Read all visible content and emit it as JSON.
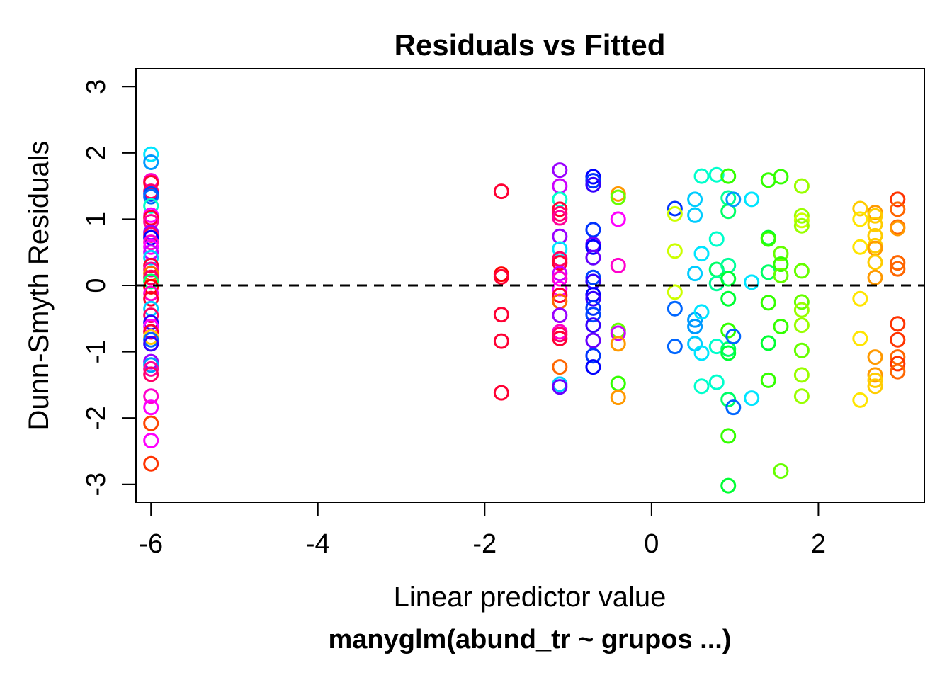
{
  "chart_data": {
    "type": "scatter",
    "title": "Residuals vs Fitted",
    "xlabel": "Linear predictor value",
    "subtitle": "manyglm(abund_tr ~ grupos ...)",
    "ylabel": "Dunn-Smyth Residuals",
    "xlim": [
      -6.18,
      3.27
    ],
    "ylim": [
      -3.27,
      3.27
    ],
    "x_ticks": [
      -6,
      -4,
      -2,
      0,
      2
    ],
    "x_tick_labels": [
      "-6",
      "-4",
      "-2",
      "0",
      "2"
    ],
    "y_ticks": [
      -3,
      -2,
      -1,
      0,
      1,
      2,
      3
    ],
    "y_tick_labels": [
      "-3",
      "-2",
      "-1",
      "0",
      "1",
      "2",
      "3"
    ],
    "reference_line": {
      "y": 0,
      "style": "dashed",
      "color": "#000000"
    },
    "marker": "open-circle",
    "points": [
      {
        "x": -6.0,
        "y": 1.98,
        "color": "#00e5ff"
      },
      {
        "x": -6.0,
        "y": 1.86,
        "color": "#0099ff"
      },
      {
        "x": -6.0,
        "y": 1.58,
        "color": "#ff00cc"
      },
      {
        "x": -6.0,
        "y": 1.55,
        "color": "#ff0033"
      },
      {
        "x": -6.0,
        "y": 1.42,
        "color": "#ff0066"
      },
      {
        "x": -6.0,
        "y": 1.38,
        "color": "#0044ff"
      },
      {
        "x": -6.0,
        "y": 1.34,
        "color": "#0066ff"
      },
      {
        "x": -6.0,
        "y": 1.2,
        "color": "#00ffcc"
      },
      {
        "x": -6.0,
        "y": 1.06,
        "color": "#ff00ff"
      },
      {
        "x": -6.0,
        "y": 1.02,
        "color": "#ff0033"
      },
      {
        "x": -6.0,
        "y": 0.96,
        "color": "#ff0099"
      },
      {
        "x": -6.0,
        "y": 0.8,
        "color": "#9900ff"
      },
      {
        "x": -6.0,
        "y": 0.76,
        "color": "#ff0066"
      },
      {
        "x": -6.0,
        "y": 0.72,
        "color": "#0000ff"
      },
      {
        "x": -6.0,
        "y": 0.65,
        "color": "#ff00cc"
      },
      {
        "x": -6.0,
        "y": 0.58,
        "color": "#ff00ff"
      },
      {
        "x": -6.0,
        "y": 0.5,
        "color": "#cc00ff"
      },
      {
        "x": -6.0,
        "y": 0.42,
        "color": "#00ccff"
      },
      {
        "x": -6.0,
        "y": 0.3,
        "color": "#ff0033"
      },
      {
        "x": -6.0,
        "y": 0.24,
        "color": "#ff0099"
      },
      {
        "x": -6.0,
        "y": 0.18,
        "color": "#ff6600"
      },
      {
        "x": -6.0,
        "y": 0.12,
        "color": "#ff0066"
      },
      {
        "x": -6.0,
        "y": 0.06,
        "color": "#00ff66"
      },
      {
        "x": -6.0,
        "y": -0.02,
        "color": "#ff0000"
      },
      {
        "x": -6.0,
        "y": -0.12,
        "color": "#ff00cc"
      },
      {
        "x": -6.0,
        "y": -0.2,
        "color": "#ff0033"
      },
      {
        "x": -6.0,
        "y": -0.35,
        "color": "#00ccff"
      },
      {
        "x": -6.0,
        "y": -0.45,
        "color": "#ff0066"
      },
      {
        "x": -6.0,
        "y": -0.56,
        "color": "#3300ff"
      },
      {
        "x": -6.0,
        "y": -0.62,
        "color": "#ff00ff"
      },
      {
        "x": -6.0,
        "y": -0.7,
        "color": "#ff0033"
      },
      {
        "x": -6.0,
        "y": -0.78,
        "color": "#ffcc00"
      },
      {
        "x": -6.0,
        "y": -0.82,
        "color": "#0066ff"
      },
      {
        "x": -6.0,
        "y": -0.88,
        "color": "#3300ff"
      },
      {
        "x": -6.0,
        "y": -1.15,
        "color": "#9900ff"
      },
      {
        "x": -6.0,
        "y": -1.2,
        "color": "#0099ff"
      },
      {
        "x": -6.0,
        "y": -1.26,
        "color": "#ff0099"
      },
      {
        "x": -6.0,
        "y": -1.34,
        "color": "#ff0066"
      },
      {
        "x": -6.0,
        "y": -1.67,
        "color": "#ff00cc"
      },
      {
        "x": -6.0,
        "y": -1.84,
        "color": "#ff00ff"
      },
      {
        "x": -6.0,
        "y": -2.08,
        "color": "#ff4400"
      },
      {
        "x": -6.0,
        "y": -2.34,
        "color": "#ff00ff"
      },
      {
        "x": -6.0,
        "y": -2.69,
        "color": "#ff3300"
      },
      {
        "x": -1.8,
        "y": 1.42,
        "color": "#ff0033"
      },
      {
        "x": -1.8,
        "y": 0.17,
        "color": "#ff0000"
      },
      {
        "x": -1.8,
        "y": 0.13,
        "color": "#ff0033"
      },
      {
        "x": -1.8,
        "y": -0.44,
        "color": "#ff0033"
      },
      {
        "x": -1.8,
        "y": -0.84,
        "color": "#ff0033"
      },
      {
        "x": -1.8,
        "y": -1.62,
        "color": "#ff0033"
      },
      {
        "x": -1.1,
        "y": 1.74,
        "color": "#9900ff"
      },
      {
        "x": -1.1,
        "y": 1.5,
        "color": "#cc00ff"
      },
      {
        "x": -1.1,
        "y": 1.3,
        "color": "#00ffcc"
      },
      {
        "x": -1.1,
        "y": 1.15,
        "color": "#ff0033"
      },
      {
        "x": -1.1,
        "y": 1.08,
        "color": "#ff0066"
      },
      {
        "x": -1.1,
        "y": 1.02,
        "color": "#ff0099"
      },
      {
        "x": -1.1,
        "y": 0.74,
        "color": "#9900ff"
      },
      {
        "x": -1.1,
        "y": 0.55,
        "color": "#00e5ff"
      },
      {
        "x": -1.1,
        "y": 0.4,
        "color": "#ff0066"
      },
      {
        "x": -1.1,
        "y": 0.34,
        "color": "#ff0033"
      },
      {
        "x": -1.1,
        "y": 0.18,
        "color": "#cc00ff"
      },
      {
        "x": -1.1,
        "y": 0.1,
        "color": "#ff00cc"
      },
      {
        "x": -1.1,
        "y": -0.05,
        "color": "#ff00ff"
      },
      {
        "x": -1.1,
        "y": -0.15,
        "color": "#ff0033"
      },
      {
        "x": -1.1,
        "y": -0.24,
        "color": "#ff6600"
      },
      {
        "x": -1.1,
        "y": -0.45,
        "color": "#9900ff"
      },
      {
        "x": -1.1,
        "y": -0.7,
        "color": "#ff00cc"
      },
      {
        "x": -1.1,
        "y": -0.8,
        "color": "#ff0033"
      },
      {
        "x": -1.1,
        "y": -0.74,
        "color": "#ff0066"
      },
      {
        "x": -1.1,
        "y": -1.23,
        "color": "#ff6600"
      },
      {
        "x": -1.1,
        "y": -1.49,
        "color": "#00ccff"
      },
      {
        "x": -1.1,
        "y": -1.53,
        "color": "#6600ff"
      },
      {
        "x": -0.7,
        "y": 1.64,
        "color": "#0000ff"
      },
      {
        "x": -0.7,
        "y": 1.58,
        "color": "#0033ff"
      },
      {
        "x": -0.7,
        "y": 1.52,
        "color": "#3300ff"
      },
      {
        "x": -0.7,
        "y": 0.84,
        "color": "#0033ff"
      },
      {
        "x": -0.7,
        "y": 0.62,
        "color": "#6600ff"
      },
      {
        "x": -0.7,
        "y": 0.58,
        "color": "#0000ff"
      },
      {
        "x": -0.7,
        "y": 0.42,
        "color": "#6600ff"
      },
      {
        "x": -0.7,
        "y": 0.12,
        "color": "#0044ff"
      },
      {
        "x": -0.7,
        "y": 0.06,
        "color": "#3300ff"
      },
      {
        "x": -0.7,
        "y": -0.14,
        "color": "#0000ff"
      },
      {
        "x": -0.7,
        "y": -0.2,
        "color": "#3300ff"
      },
      {
        "x": -0.7,
        "y": -0.34,
        "color": "#0033ff"
      },
      {
        "x": -0.7,
        "y": -0.44,
        "color": "#0044ff"
      },
      {
        "x": -0.7,
        "y": -0.6,
        "color": "#3300ff"
      },
      {
        "x": -0.7,
        "y": -0.83,
        "color": "#6600ff"
      },
      {
        "x": -0.7,
        "y": -1.06,
        "color": "#0033ff"
      },
      {
        "x": -0.7,
        "y": -1.23,
        "color": "#0000ff"
      },
      {
        "x": -0.4,
        "y": 1.38,
        "color": "#ff9900"
      },
      {
        "x": -0.4,
        "y": 1.33,
        "color": "#66ff00"
      },
      {
        "x": -0.4,
        "y": 1.0,
        "color": "#ff00ff"
      },
      {
        "x": -0.4,
        "y": 0.3,
        "color": "#ff00cc"
      },
      {
        "x": -0.4,
        "y": -0.68,
        "color": "#66ff00"
      },
      {
        "x": -0.4,
        "y": -0.72,
        "color": "#cc00ff"
      },
      {
        "x": -0.4,
        "y": -0.88,
        "color": "#ff9900"
      },
      {
        "x": -0.4,
        "y": -1.48,
        "color": "#33ff00"
      },
      {
        "x": -0.4,
        "y": -1.69,
        "color": "#ff9900"
      },
      {
        "x": 0.28,
        "y": 1.16,
        "color": "#0033ff"
      },
      {
        "x": 0.28,
        "y": 1.08,
        "color": "#ccff00"
      },
      {
        "x": 0.28,
        "y": 0.52,
        "color": "#ccff00"
      },
      {
        "x": 0.28,
        "y": -0.1,
        "color": "#ccff00"
      },
      {
        "x": 0.28,
        "y": -0.35,
        "color": "#0066ff"
      },
      {
        "x": 0.28,
        "y": -0.92,
        "color": "#0066ff"
      },
      {
        "x": 0.52,
        "y": 1.3,
        "color": "#00ccff"
      },
      {
        "x": 0.52,
        "y": 1.06,
        "color": "#00ccff"
      },
      {
        "x": 0.52,
        "y": 0.18,
        "color": "#00ccff"
      },
      {
        "x": 0.52,
        "y": -0.52,
        "color": "#0099ff"
      },
      {
        "x": 0.52,
        "y": -0.62,
        "color": "#0099ff"
      },
      {
        "x": 0.52,
        "y": -0.88,
        "color": "#00ccff"
      },
      {
        "x": 0.6,
        "y": 1.65,
        "color": "#00ffcc"
      },
      {
        "x": 0.6,
        "y": 0.48,
        "color": "#00e5ff"
      },
      {
        "x": 0.6,
        "y": -0.4,
        "color": "#00e5ff"
      },
      {
        "x": 0.6,
        "y": -1.02,
        "color": "#00e5ff"
      },
      {
        "x": 0.6,
        "y": -1.52,
        "color": "#00ffcc"
      },
      {
        "x": 0.78,
        "y": 1.67,
        "color": "#00ffcc"
      },
      {
        "x": 0.78,
        "y": 0.7,
        "color": "#00ffcc"
      },
      {
        "x": 0.78,
        "y": 0.24,
        "color": "#00ff66"
      },
      {
        "x": 0.78,
        "y": 0.03,
        "color": "#00ff99"
      },
      {
        "x": 0.78,
        "y": -0.92,
        "color": "#00ffcc"
      },
      {
        "x": 0.78,
        "y": -1.46,
        "color": "#00ffcc"
      },
      {
        "x": 0.92,
        "y": 1.65,
        "color": "#33ff00"
      },
      {
        "x": 0.92,
        "y": 1.32,
        "color": "#00ff99"
      },
      {
        "x": 0.92,
        "y": 1.12,
        "color": "#00ff66"
      },
      {
        "x": 0.92,
        "y": 0.3,
        "color": "#00ff99"
      },
      {
        "x": 0.92,
        "y": 0.1,
        "color": "#00ff33"
      },
      {
        "x": 0.92,
        "y": -0.2,
        "color": "#00ff33"
      },
      {
        "x": 0.92,
        "y": -0.68,
        "color": "#33ff00"
      },
      {
        "x": 0.92,
        "y": -0.96,
        "color": "#00ff66"
      },
      {
        "x": 0.92,
        "y": -1.02,
        "color": "#00ff33"
      },
      {
        "x": 0.92,
        "y": -1.72,
        "color": "#00ff66"
      },
      {
        "x": 0.92,
        "y": -2.27,
        "color": "#33ff00"
      },
      {
        "x": 0.92,
        "y": -3.02,
        "color": "#00ff33"
      },
      {
        "x": 0.98,
        "y": 1.3,
        "color": "#0099ff"
      },
      {
        "x": 0.98,
        "y": -0.77,
        "color": "#0066ff"
      },
      {
        "x": 0.98,
        "y": -1.84,
        "color": "#0066ff"
      },
      {
        "x": 1.2,
        "y": 1.3,
        "color": "#00e5ff"
      },
      {
        "x": 1.2,
        "y": 0.05,
        "color": "#00e5ff"
      },
      {
        "x": 1.2,
        "y": -1.7,
        "color": "#00e5ff"
      },
      {
        "x": 1.4,
        "y": 1.59,
        "color": "#33ff00"
      },
      {
        "x": 1.4,
        "y": 0.72,
        "color": "#00ff33"
      },
      {
        "x": 1.4,
        "y": 0.7,
        "color": "#33ff00"
      },
      {
        "x": 1.4,
        "y": 0.2,
        "color": "#00ff66"
      },
      {
        "x": 1.4,
        "y": -0.26,
        "color": "#33ff00"
      },
      {
        "x": 1.4,
        "y": -0.87,
        "color": "#00ff33"
      },
      {
        "x": 1.4,
        "y": -1.43,
        "color": "#33ff00"
      },
      {
        "x": 1.55,
        "y": 1.64,
        "color": "#33ff00"
      },
      {
        "x": 1.55,
        "y": 0.48,
        "color": "#66ff00"
      },
      {
        "x": 1.55,
        "y": 0.32,
        "color": "#33ff00"
      },
      {
        "x": 1.55,
        "y": 0.15,
        "color": "#66ff00"
      },
      {
        "x": 1.55,
        "y": -0.62,
        "color": "#33ff00"
      },
      {
        "x": 1.55,
        "y": -2.8,
        "color": "#66ff00"
      },
      {
        "x": 1.8,
        "y": 1.5,
        "color": "#99ff00"
      },
      {
        "x": 1.8,
        "y": 1.05,
        "color": "#99ff00"
      },
      {
        "x": 1.8,
        "y": 0.98,
        "color": "#ccff00"
      },
      {
        "x": 1.8,
        "y": 0.9,
        "color": "#99ff00"
      },
      {
        "x": 1.8,
        "y": 0.22,
        "color": "#66ff00"
      },
      {
        "x": 1.8,
        "y": -0.25,
        "color": "#66ff00"
      },
      {
        "x": 1.8,
        "y": -0.37,
        "color": "#99ff00"
      },
      {
        "x": 1.8,
        "y": -0.6,
        "color": "#99ff00"
      },
      {
        "x": 1.8,
        "y": -0.98,
        "color": "#66ff00"
      },
      {
        "x": 1.8,
        "y": -1.35,
        "color": "#99ff00"
      },
      {
        "x": 1.8,
        "y": -1.67,
        "color": "#99ff00"
      },
      {
        "x": 2.5,
        "y": 1.16,
        "color": "#ffcc00"
      },
      {
        "x": 2.5,
        "y": 1.0,
        "color": "#ffe500"
      },
      {
        "x": 2.5,
        "y": 0.58,
        "color": "#ffe500"
      },
      {
        "x": 2.5,
        "y": -0.2,
        "color": "#ffe500"
      },
      {
        "x": 2.5,
        "y": -0.8,
        "color": "#ffe500"
      },
      {
        "x": 2.5,
        "y": -1.73,
        "color": "#ffe500"
      },
      {
        "x": 2.68,
        "y": 1.1,
        "color": "#ff9900"
      },
      {
        "x": 2.68,
        "y": 1.05,
        "color": "#ffcc00"
      },
      {
        "x": 2.68,
        "y": 0.92,
        "color": "#ffcc00"
      },
      {
        "x": 2.68,
        "y": 0.75,
        "color": "#ffcc00"
      },
      {
        "x": 2.68,
        "y": 0.6,
        "color": "#ffcc00"
      },
      {
        "x": 2.68,
        "y": 0.56,
        "color": "#ff9900"
      },
      {
        "x": 2.68,
        "y": 0.35,
        "color": "#ffcc00"
      },
      {
        "x": 2.68,
        "y": 0.12,
        "color": "#ff9900"
      },
      {
        "x": 2.68,
        "y": -1.08,
        "color": "#ff9900"
      },
      {
        "x": 2.68,
        "y": -1.35,
        "color": "#ff9900"
      },
      {
        "x": 2.68,
        "y": -1.43,
        "color": "#ffcc00"
      },
      {
        "x": 2.68,
        "y": -1.52,
        "color": "#ffcc00"
      },
      {
        "x": 2.95,
        "y": 1.3,
        "color": "#ff3300"
      },
      {
        "x": 2.95,
        "y": 1.15,
        "color": "#ff6600"
      },
      {
        "x": 2.95,
        "y": 0.88,
        "color": "#ff6600"
      },
      {
        "x": 2.95,
        "y": 0.86,
        "color": "#ff9900"
      },
      {
        "x": 2.95,
        "y": 0.34,
        "color": "#ff6600"
      },
      {
        "x": 2.95,
        "y": 0.25,
        "color": "#ff6600"
      },
      {
        "x": 2.95,
        "y": -0.58,
        "color": "#ff3300"
      },
      {
        "x": 2.95,
        "y": -0.82,
        "color": "#ff3300"
      },
      {
        "x": 2.95,
        "y": -1.08,
        "color": "#ff6600"
      },
      {
        "x": 2.95,
        "y": -1.18,
        "color": "#ff3300"
      },
      {
        "x": 2.95,
        "y": -1.3,
        "color": "#ff6600"
      }
    ]
  }
}
